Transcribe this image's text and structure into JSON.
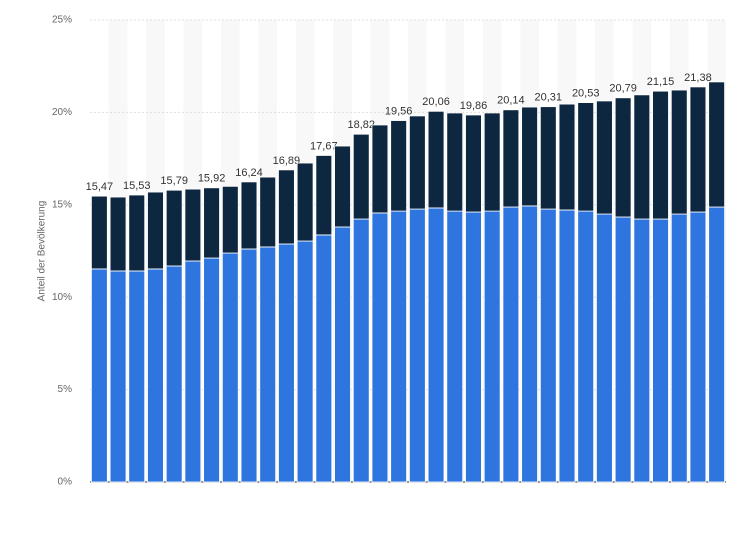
{
  "chart_data": {
    "type": "stacked_bar",
    "y_label": "Anteil der Bevölkerung",
    "categories": [
      null,
      null,
      null,
      null,
      null,
      null,
      null,
      null,
      null,
      null,
      null,
      null,
      null,
      null,
      null,
      null,
      null,
      null,
      null,
      null,
      null,
      null,
      null,
      null,
      null,
      null,
      null,
      null,
      null,
      null,
      null,
      null,
      null,
      null
    ],
    "series": [
      {
        "color": "#2f75e0",
        "values": [
          11.53,
          11.42,
          11.42,
          11.53,
          11.69,
          11.96,
          12.12,
          12.39,
          12.61,
          12.72,
          12.88,
          13.04,
          13.37,
          13.8,
          14.23,
          14.56,
          14.66,
          14.77,
          14.83,
          14.66,
          14.61,
          14.66,
          14.88,
          14.94,
          14.77,
          14.72,
          14.66,
          14.5,
          14.34,
          14.23,
          14.23,
          14.5,
          14.61,
          14.88
        ]
      },
      {
        "color": "#0d2740",
        "values": [
          3.94,
          4.0,
          4.11,
          4.16,
          4.1,
          3.89,
          3.8,
          3.61,
          3.63,
          3.78,
          4.01,
          4.22,
          4.3,
          4.38,
          4.59,
          4.76,
          4.9,
          5.04,
          5.23,
          5.31,
          5.25,
          5.31,
          5.26,
          5.35,
          5.54,
          5.73,
          5.87,
          6.12,
          6.45,
          6.72,
          6.92,
          6.71,
          6.77,
          6.77
        ]
      }
    ],
    "total_labels": [
      "15,47",
      null,
      "15,53",
      null,
      "15,79",
      null,
      "15,92",
      null,
      "16,24",
      null,
      "16,89",
      null,
      "17,67",
      null,
      "18,82",
      null,
      "19,56",
      null,
      "20,06",
      null,
      "19,86",
      null,
      "20,14",
      null,
      "20,31",
      null,
      "20,53",
      null,
      "20,79",
      null,
      "21,15",
      null,
      "21,38",
      null
    ],
    "ylim": [
      0,
      25
    ],
    "yticks": [
      {
        "value": 0,
        "label": "0%"
      },
      {
        "value": 5,
        "label": "5%"
      },
      {
        "value": 10,
        "label": "10%"
      },
      {
        "value": 15,
        "label": "15%"
      },
      {
        "value": 20,
        "label": "20%"
      },
      {
        "value": 25,
        "label": "25%"
      }
    ],
    "grid": true
  }
}
